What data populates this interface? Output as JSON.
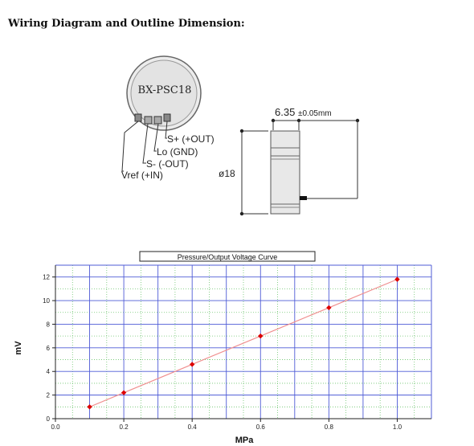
{
  "page": {
    "title": "Wiring Diagram and Outline Dimension:"
  },
  "wiring": {
    "model": "BX-PSC18",
    "pins": [
      {
        "label": "S+ (+OUT)"
      },
      {
        "label": "Lo (GND)"
      },
      {
        "label": "S- (-OUT)"
      },
      {
        "label": "Vref (+IN)"
      }
    ]
  },
  "outline": {
    "length_value": "6.35",
    "length_tolerance": "±0.05mm",
    "diameter": "ø18"
  },
  "chart_data": {
    "type": "line",
    "title": "Pressure/Output Voltage Curve",
    "xlabel": "MPa",
    "ylabel": "mV",
    "xlim": [
      0,
      1.1
    ],
    "ylim": [
      0,
      13
    ],
    "x_ticks": [
      "0.0",
      "0.2",
      "0.4",
      "0.6",
      "0.8",
      "1.0"
    ],
    "y_ticks": [
      "0",
      "2",
      "4",
      "6",
      "8",
      "10",
      "12"
    ],
    "grid": true,
    "series": [
      {
        "x": [
          0.1,
          0.2,
          0.4,
          0.6,
          0.8,
          1.0
        ],
        "y": [
          1.0,
          2.2,
          4.6,
          7.0,
          9.4,
          11.8
        ]
      }
    ],
    "line_color": "#f08f8f",
    "marker_color": "#dd0000"
  }
}
